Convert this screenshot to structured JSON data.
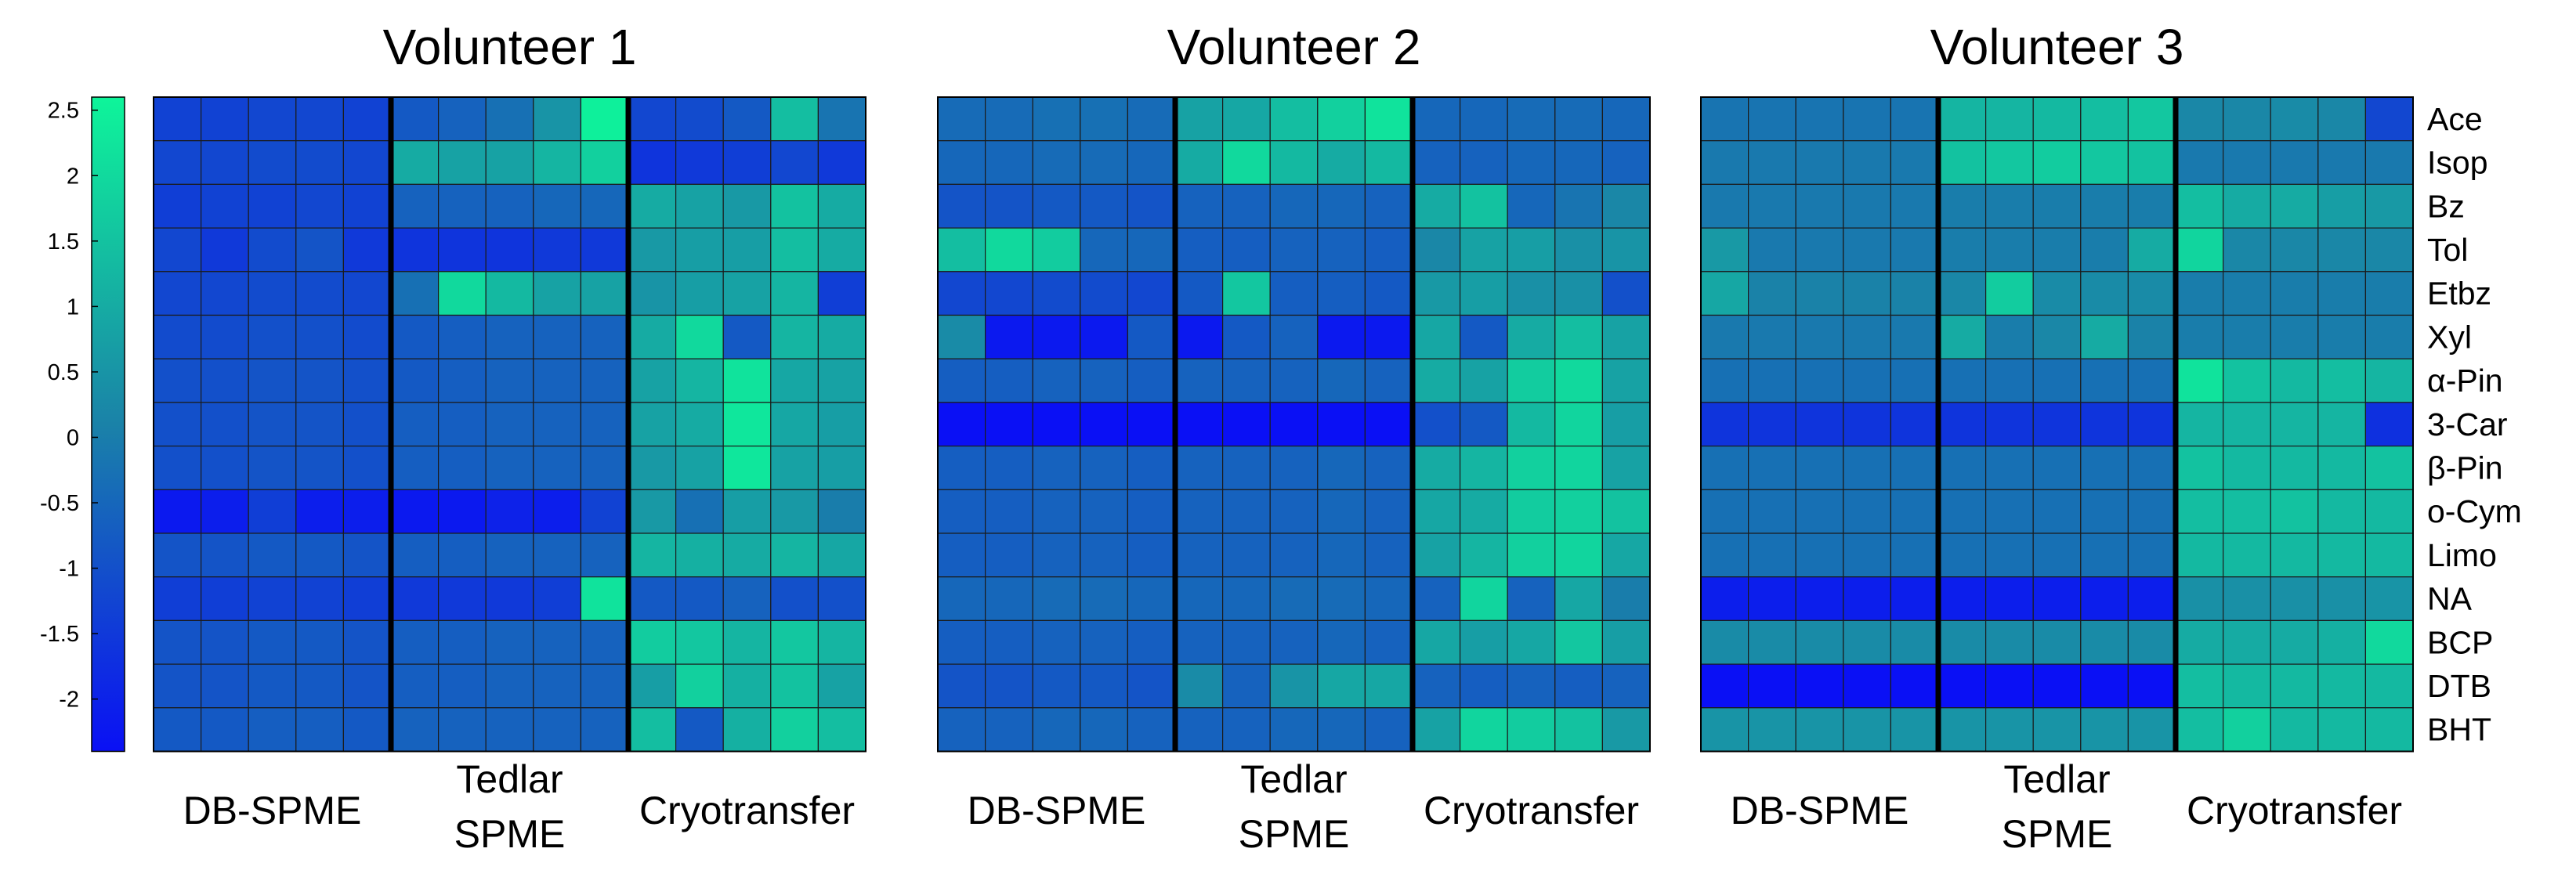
{
  "chart_data": {
    "type": "heatmap",
    "colorbar": {
      "min": -2.4,
      "max": 2.6,
      "ticks": [
        "2.5",
        "2",
        "1.5",
        "1",
        "0.5",
        "0",
        "-0.5",
        "-1",
        "-1.5",
        "-2"
      ],
      "tick_values": [
        2.5,
        2,
        1.5,
        1,
        0.5,
        0,
        -0.5,
        -1,
        -1.5,
        -2
      ],
      "low_color": "#0a10f5",
      "mid_color": "#1a82a8",
      "high_color": "#0ef59a"
    },
    "row_labels": [
      "Ace",
      "Isop",
      "Bz",
      "Tol",
      "Etbz",
      "Xyl",
      "α-Pin",
      "3-Car",
      "β-Pin",
      "o-Cym",
      "Limo",
      "NA",
      "BCP",
      "DTB",
      "BHT"
    ],
    "groups": [
      {
        "label": "DB-SPME",
        "line1": "DB-SPME",
        "line2": ""
      },
      {
        "label": "Tedlar SPME",
        "line1": "Tedlar",
        "line2": "SPME"
      },
      {
        "label": "Cryotransfer",
        "line1": "Cryotransfer",
        "line2": ""
      }
    ],
    "columns_per_group": 5,
    "panels": [
      {
        "title": "Volunteer 1",
        "values": [
          [
            -1.3,
            -1.3,
            -1.2,
            -1.2,
            -1.3,
            -0.8,
            -0.6,
            -0.3,
            0.5,
            2.5,
            -1.2,
            -1.1,
            -0.8,
            1.4,
            -0.2
          ],
          [
            -1.2,
            -1.2,
            -1.1,
            -1.1,
            -1.2,
            1.0,
            0.8,
            0.8,
            1.2,
            1.8,
            -1.6,
            -1.5,
            -1.4,
            -1.2,
            -1.5
          ],
          [
            -1.4,
            -1.3,
            -1.3,
            -1.2,
            -1.3,
            -0.6,
            -0.6,
            -0.6,
            -0.5,
            -0.5,
            1.0,
            0.8,
            0.6,
            1.5,
            1.0
          ],
          [
            -1.2,
            -1.5,
            -1.1,
            -0.9,
            -1.5,
            -1.6,
            -1.6,
            -1.6,
            -1.5,
            -1.5,
            0.6,
            0.7,
            0.7,
            1.4,
            1.0
          ],
          [
            -1.2,
            -1.2,
            -1.1,
            -1.1,
            -1.2,
            -0.3,
            2.0,
            1.3,
            0.8,
            0.8,
            0.5,
            0.7,
            0.8,
            1.2,
            -1.4
          ],
          [
            -1.1,
            -1.1,
            -1.0,
            -1.0,
            -1.1,
            -0.8,
            -0.7,
            -0.6,
            -0.6,
            -0.6,
            1.0,
            2.0,
            -0.8,
            1.2,
            1.0
          ],
          [
            -1.0,
            -1.0,
            -0.9,
            -0.9,
            -1.0,
            -0.8,
            -0.7,
            -0.6,
            -0.6,
            -0.6,
            0.8,
            1.2,
            2.2,
            0.9,
            0.8
          ],
          [
            -1.0,
            -1.0,
            -0.9,
            -0.9,
            -1.0,
            -0.7,
            -0.7,
            -0.6,
            -0.6,
            -0.6,
            0.8,
            1.0,
            2.3,
            0.9,
            0.7
          ],
          [
            -1.0,
            -1.0,
            -0.9,
            -0.9,
            -1.0,
            -0.7,
            -0.7,
            -0.6,
            -0.6,
            -0.6,
            0.6,
            0.8,
            2.3,
            0.8,
            0.7
          ],
          [
            -2.2,
            -2.1,
            -1.4,
            -2.1,
            -2.1,
            -2.2,
            -2.2,
            -2.0,
            -2.1,
            -1.3,
            0.6,
            -0.3,
            0.7,
            0.6,
            0.0
          ],
          [
            -0.9,
            -0.9,
            -0.8,
            -0.8,
            -0.9,
            -0.7,
            -0.7,
            -0.6,
            -0.6,
            -0.6,
            1.2,
            1.1,
            1.0,
            1.2,
            0.9
          ],
          [
            -1.4,
            -1.4,
            -1.3,
            -1.3,
            -1.4,
            -1.5,
            -1.5,
            -1.5,
            -1.4,
            2.2,
            -0.8,
            -0.8,
            -0.6,
            -1.0,
            -1.0
          ],
          [
            -0.9,
            -0.9,
            -0.8,
            -0.8,
            -0.9,
            -0.7,
            -0.7,
            -0.6,
            -0.6,
            -0.6,
            1.7,
            1.6,
            1.2,
            1.6,
            1.2
          ],
          [
            -0.9,
            -0.9,
            -0.8,
            -0.8,
            -0.9,
            -0.7,
            -0.7,
            -0.6,
            -0.6,
            -0.6,
            0.7,
            1.8,
            1.1,
            1.5,
            0.8
          ],
          [
            -0.8,
            -0.8,
            -0.7,
            -0.7,
            -0.8,
            -0.6,
            -0.6,
            -0.6,
            -0.6,
            -0.6,
            1.4,
            -0.8,
            1.1,
            1.8,
            1.4
          ]
        ]
      },
      {
        "title": "Volunteer 2",
        "values": [
          [
            -0.4,
            -0.4,
            -0.3,
            -0.3,
            -0.4,
            0.8,
            0.9,
            1.4,
            1.8,
            2.2,
            -0.5,
            -0.5,
            -0.4,
            -0.4,
            -0.5
          ],
          [
            -0.5,
            -0.5,
            -0.4,
            -0.4,
            -0.5,
            1.0,
            2.0,
            1.3,
            1.0,
            1.3,
            -0.6,
            -0.6,
            -0.5,
            -0.5,
            -0.6
          ],
          [
            -0.9,
            -0.9,
            -0.8,
            -0.8,
            -0.9,
            -0.6,
            -0.6,
            -0.5,
            -0.5,
            -0.6,
            1.0,
            1.5,
            -0.5,
            -0.2,
            0.2
          ],
          [
            1.4,
            2.0,
            1.7,
            -0.5,
            -0.5,
            -0.7,
            -0.7,
            -0.6,
            -0.6,
            -0.7,
            0.2,
            0.8,
            0.7,
            0.4,
            0.5
          ],
          [
            -1.2,
            -1.2,
            -1.1,
            -1.1,
            -1.2,
            -0.8,
            1.6,
            -0.7,
            -0.7,
            -0.8,
            0.6,
            0.7,
            0.4,
            0.4,
            -1.0
          ],
          [
            0.3,
            -2.2,
            -2.2,
            -2.2,
            -0.8,
            -2.2,
            -0.8,
            -0.6,
            -2.2,
            -2.2,
            0.9,
            -0.8,
            1.0,
            1.4,
            0.8
          ],
          [
            -0.7,
            -0.7,
            -0.6,
            -0.6,
            -0.7,
            -0.6,
            -0.6,
            -0.6,
            -0.5,
            -0.6,
            1.0,
            0.8,
            1.7,
            2.0,
            0.8
          ],
          [
            -2.4,
            -2.4,
            -2.4,
            -2.4,
            -2.4,
            -2.4,
            -2.4,
            -2.4,
            -2.4,
            -2.4,
            -1.0,
            -0.8,
            1.3,
            1.9,
            0.7
          ],
          [
            -0.7,
            -0.7,
            -0.6,
            -0.6,
            -0.7,
            -0.6,
            -0.6,
            -0.6,
            -0.5,
            -0.6,
            1.0,
            1.2,
            1.8,
            1.9,
            0.8
          ],
          [
            -0.7,
            -0.7,
            -0.6,
            -0.6,
            -0.7,
            -0.6,
            -0.6,
            -0.6,
            -0.5,
            -0.6,
            0.9,
            1.0,
            1.7,
            1.8,
            1.5
          ],
          [
            -0.7,
            -0.7,
            -0.6,
            -0.6,
            -0.7,
            -0.6,
            -0.6,
            -0.6,
            -0.5,
            -0.6,
            0.8,
            1.2,
            1.8,
            1.9,
            0.9
          ],
          [
            -0.5,
            -0.5,
            -0.4,
            -0.4,
            -0.5,
            -0.5,
            -0.5,
            -0.4,
            -0.4,
            -0.5,
            -0.6,
            1.9,
            -0.6,
            0.9,
            0.0
          ],
          [
            -0.7,
            -0.7,
            -0.6,
            -0.6,
            -0.7,
            -0.6,
            -0.6,
            -0.6,
            -0.5,
            -0.6,
            0.9,
            0.7,
            0.9,
            1.6,
            0.7
          ],
          [
            -0.9,
            -0.9,
            -0.8,
            -0.8,
            -0.9,
            0.3,
            -0.6,
            0.5,
            0.9,
            0.9,
            -0.6,
            -0.7,
            -0.6,
            -0.7,
            -0.6
          ],
          [
            -0.6,
            -0.6,
            -0.5,
            -0.5,
            -0.6,
            -0.6,
            -0.6,
            -0.5,
            -0.5,
            -0.6,
            0.8,
            1.9,
            1.7,
            1.5,
            0.6
          ]
        ]
      },
      {
        "title": "Volunteer 3",
        "values": [
          [
            -0.2,
            -0.2,
            -0.2,
            -0.2,
            -0.2,
            1.2,
            1.2,
            1.3,
            1.4,
            1.6,
            0.2,
            0.2,
            0.3,
            0.2,
            -1.2
          ],
          [
            -0.1,
            -0.1,
            -0.1,
            -0.1,
            -0.1,
            1.5,
            1.6,
            1.7,
            1.6,
            1.5,
            -0.1,
            -0.1,
            -0.1,
            -0.1,
            -0.1
          ],
          [
            -0.1,
            -0.1,
            -0.1,
            -0.1,
            -0.1,
            0.0,
            0.0,
            0.0,
            0.0,
            0.0,
            1.4,
            1.0,
            1.0,
            0.7,
            0.6
          ],
          [
            0.6,
            -0.1,
            -0.1,
            -0.1,
            -0.1,
            0.0,
            0.0,
            0.0,
            0.0,
            1.0,
            1.9,
            0.2,
            0.2,
            0.2,
            0.2
          ],
          [
            0.9,
            0.1,
            0.1,
            0.1,
            0.1,
            0.2,
            1.7,
            0.3,
            0.3,
            0.3,
            0.0,
            0.0,
            0.0,
            0.0,
            0.0
          ],
          [
            -0.1,
            -0.1,
            -0.1,
            -0.1,
            -0.1,
            1.0,
            0.0,
            0.2,
            1.0,
            0.1,
            0.0,
            0.0,
            0.0,
            0.0,
            0.0
          ],
          [
            -0.3,
            -0.3,
            -0.3,
            -0.3,
            -0.3,
            -0.3,
            -0.3,
            -0.3,
            -0.3,
            -0.3,
            2.2,
            1.5,
            1.3,
            1.4,
            1.2
          ],
          [
            -1.6,
            -1.6,
            -1.6,
            -1.6,
            -1.6,
            -1.6,
            -1.6,
            -1.6,
            -1.6,
            -1.6,
            1.2,
            1.2,
            1.2,
            1.2,
            -1.7
          ],
          [
            -0.3,
            -0.3,
            -0.3,
            -0.3,
            -0.3,
            -0.3,
            -0.3,
            -0.3,
            -0.3,
            -0.3,
            1.5,
            1.3,
            1.3,
            1.3,
            1.5
          ],
          [
            -0.3,
            -0.3,
            -0.3,
            -0.3,
            -0.3,
            -0.3,
            -0.3,
            -0.3,
            -0.3,
            -0.3,
            1.4,
            1.4,
            1.5,
            1.3,
            1.3
          ],
          [
            -0.3,
            -0.3,
            -0.3,
            -0.3,
            -0.3,
            -0.3,
            -0.3,
            -0.3,
            -0.3,
            -0.3,
            1.3,
            1.3,
            1.3,
            1.3,
            1.3
          ],
          [
            -2.1,
            -2.1,
            -2.1,
            -2.1,
            -2.1,
            -2.1,
            -2.1,
            -2.1,
            -2.1,
            -2.1,
            0.4,
            0.4,
            0.4,
            0.4,
            0.5
          ],
          [
            0.3,
            0.3,
            0.3,
            0.3,
            0.3,
            0.3,
            0.3,
            0.3,
            0.3,
            0.3,
            1.0,
            1.0,
            1.0,
            1.1,
            2.0
          ],
          [
            -2.4,
            -2.4,
            -2.4,
            -2.4,
            -2.4,
            -2.4,
            -2.4,
            -2.4,
            -2.4,
            -2.4,
            1.4,
            1.3,
            1.3,
            1.3,
            1.3
          ],
          [
            0.5,
            0.5,
            0.5,
            0.5,
            0.5,
            0.5,
            0.5,
            0.5,
            0.5,
            0.5,
            1.4,
            1.8,
            1.3,
            1.3,
            1.3
          ]
        ]
      }
    ]
  }
}
